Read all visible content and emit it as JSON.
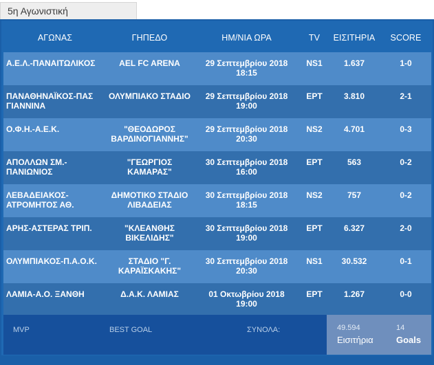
{
  "tab": {
    "label": "5η Αγωνιστική"
  },
  "table": {
    "headers": [
      "ΑΓΩΝΑΣ",
      "ΓΗΠΕΔΟ",
      "ΗΜ/ΝΙΑ ΩΡΑ",
      "TV",
      "ΕΙΣΙΤΗΡΙΑ",
      "SCORE"
    ],
    "rows": [
      {
        "match": "Α.Ε.Λ.-ΠΑΝΑΙΤΩΛΙΚΟΣ",
        "stadium": "AEL FC ARENA",
        "date": "29 Σεπτεμβρίου 2018",
        "time": "18:15",
        "tv": "NS1",
        "tickets": "1.637",
        "score": "1-0"
      },
      {
        "match": "ΠΑΝΑΘΗΝΑΪΚΟΣ-ΠΑΣ ΓΙΑΝΝΙΝΑ",
        "stadium": "ΟΛΥΜΠΙΑΚΟ ΣΤΑΔΙΟ",
        "date": "29 Σεπτεμβρίου 2018",
        "time": "19:00",
        "tv": "ΕΡΤ",
        "tickets": "3.810",
        "score": "2-1"
      },
      {
        "match": "Ο.Φ.Η.-Α.Ε.Κ.",
        "stadium": "\"ΘΕΟΔΩΡΟΣ ΒΑΡΔΙΝΟΓΙΑΝΝΗΣ\"",
        "date": "29 Σεπτεμβρίου 2018",
        "time": "20:30",
        "tv": "NS2",
        "tickets": "4.701",
        "score": "0-3"
      },
      {
        "match": "ΑΠΟΛΛΩΝ ΣΜ.-ΠΑΝΙΩΝΙΟΣ",
        "stadium": "\"ΓΕΩΡΓΙΟΣ ΚΑΜΑΡΑΣ\"",
        "date": "30 Σεπτεμβρίου 2018",
        "time": "16:00",
        "tv": "ΕΡΤ",
        "tickets": "563",
        "score": "0-2"
      },
      {
        "match": "ΛΕΒΑΔΕΙΑΚΟΣ-ΑΤΡΟΜΗΤΟΣ ΑΘ.",
        "stadium": "ΔΗΜΟΤΙΚΟ ΣΤΑΔΙΟ ΛΙΒΑΔΕΙΑΣ",
        "date": "30 Σεπτεμβρίου 2018",
        "time": "18:15",
        "tv": "NS2",
        "tickets": "757",
        "score": "0-2"
      },
      {
        "match": "ΑΡΗΣ-ΑΣΤΕΡΑΣ ΤΡΙΠ.",
        "stadium": "\"ΚΛΕΑΝΘΗΣ ΒΙΚΕΛΙΔΗΣ\"",
        "date": "30 Σεπτεμβρίου 2018",
        "time": "19:00",
        "tv": "ΕΡΤ",
        "tickets": "6.327",
        "score": "2-0"
      },
      {
        "match": "ΟΛΥΜΠΙΑΚΟΣ-Π.Α.Ο.Κ.",
        "stadium": "ΣΤΑΔΙΟ \"Γ. ΚΑΡΑΪΣΚΑΚΗΣ\"",
        "date": "30 Σεπτεμβρίου 2018",
        "time": "20:30",
        "tv": "NS1",
        "tickets": "30.532",
        "score": "0-1"
      },
      {
        "match": "ΛΑΜΙΑ-Α.Ο. ΞΑΝΘΗ",
        "stadium": "Δ.Α.Κ. ΛΑΜΙΑΣ",
        "date": "01 Οκτωβρίου 2018",
        "time": "19:00",
        "tv": "ΕΡΤ",
        "tickets": "1.267",
        "score": "0-0"
      }
    ]
  },
  "footer": {
    "mvp_label": "MVP",
    "best_goal_label": "BEST GOAL",
    "totals_label": "ΣΥΝΟΛΑ:",
    "tickets_total": "49.594",
    "tickets_caption": "Εισιτήρια",
    "goals_total": "14",
    "goals_caption": "Goals"
  }
}
